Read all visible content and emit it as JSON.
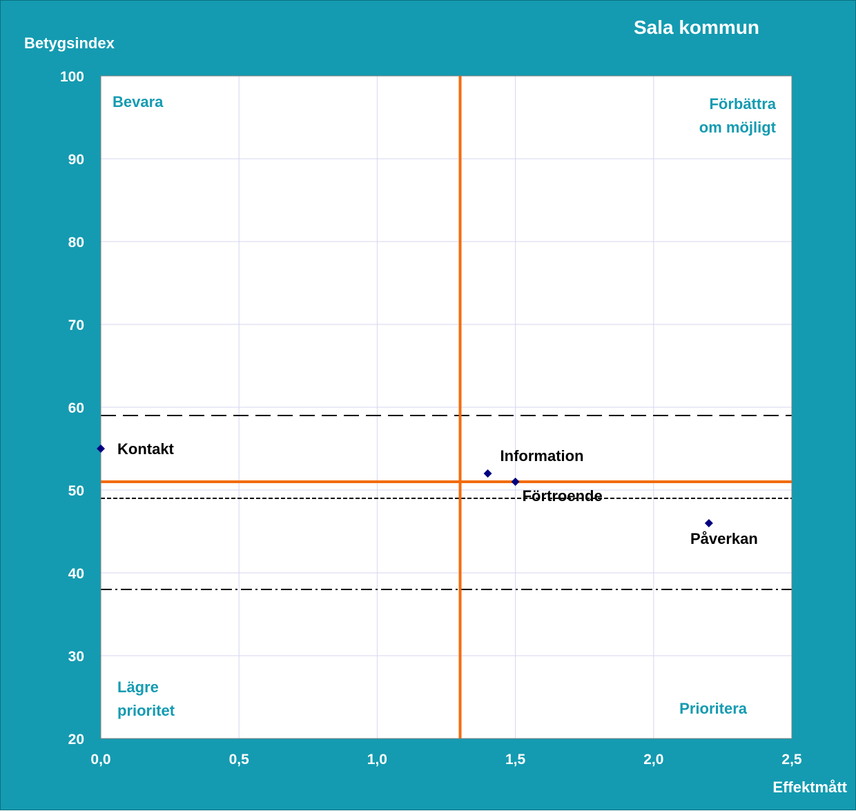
{
  "colors": {
    "frame": "#149bb1",
    "plot_area": "#ffffff",
    "gridline": "#d6d6f0",
    "plot_border": "#808080",
    "accent_line": "#f26c0d",
    "marker": "#000080",
    "quadrant_text": "#149bb1",
    "reference_line": "#000000"
  },
  "chart_data": {
    "type": "scatter",
    "title": "Sala kommun",
    "xlabel": "Effektmått",
    "ylabel": "Betygsindex",
    "xlim": [
      0,
      2.5
    ],
    "ylim": [
      20,
      100
    ],
    "xticks": [
      {
        "value": 0,
        "label": "0,0"
      },
      {
        "value": 0.5,
        "label": "0,5"
      },
      {
        "value": 1.0,
        "label": "1,0"
      },
      {
        "value": 1.5,
        "label": "1,5"
      },
      {
        "value": 2.0,
        "label": "2,0"
      },
      {
        "value": 2.5,
        "label": "2,5"
      }
    ],
    "yticks": [
      {
        "value": 20,
        "label": "20"
      },
      {
        "value": 30,
        "label": "30"
      },
      {
        "value": 40,
        "label": "40"
      },
      {
        "value": 50,
        "label": "50"
      },
      {
        "value": 60,
        "label": "60"
      },
      {
        "value": 70,
        "label": "70"
      },
      {
        "value": 80,
        "label": "80"
      },
      {
        "value": 90,
        "label": "90"
      },
      {
        "value": 100,
        "label": "100"
      }
    ],
    "grid": true,
    "points": [
      {
        "label": "Kontakt",
        "x": 0.0,
        "y": 55,
        "label_position": "right"
      },
      {
        "label": "Information",
        "x": 1.4,
        "y": 52,
        "label_position": "above-right"
      },
      {
        "label": "Förtroende",
        "x": 1.5,
        "y": 51,
        "label_position": "below-right"
      },
      {
        "label": "Påverkan",
        "x": 2.2,
        "y": 46,
        "label_position": "below"
      }
    ],
    "quadrant_lines": {
      "x": 1.3,
      "y": 51
    },
    "reference_lines": [
      {
        "y": 59,
        "style": "long-dash"
      },
      {
        "y": 49,
        "style": "short-dash"
      },
      {
        "y": 38,
        "style": "dash-dot"
      }
    ],
    "quadrant_labels": [
      {
        "lines": [
          "Bevara"
        ],
        "quadrant": "top-left"
      },
      {
        "lines": [
          "Förbättra",
          "om möjligt"
        ],
        "quadrant": "top-right"
      },
      {
        "lines": [
          "Lägre",
          "prioritet"
        ],
        "quadrant": "bottom-left"
      },
      {
        "lines": [
          "Prioritera"
        ],
        "quadrant": "bottom-right"
      }
    ]
  }
}
